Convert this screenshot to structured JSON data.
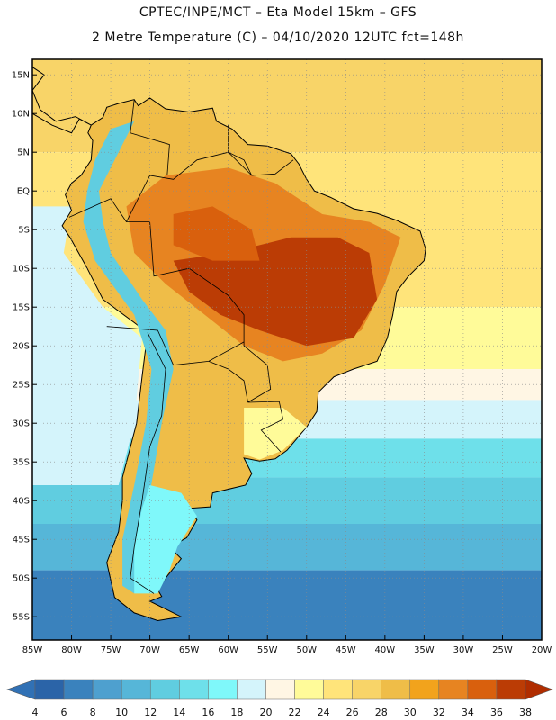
{
  "header": {
    "line1": "CPTEC/INPE/MCT –  Eta Model 15km – GFS",
    "line2": "2 Metre Temperature (C) – 04/10/2020 12UTC fct=148h"
  },
  "map": {
    "lon_range": [
      -85,
      -20
    ],
    "lat_range": [
      -58,
      17
    ],
    "lat_ticks": [
      {
        "v": 15,
        "label": "15N"
      },
      {
        "v": 10,
        "label": "10N"
      },
      {
        "v": 5,
        "label": "5N"
      },
      {
        "v": 0,
        "label": "EQ"
      },
      {
        "v": -5,
        "label": "5S"
      },
      {
        "v": -10,
        "label": "10S"
      },
      {
        "v": -15,
        "label": "15S"
      },
      {
        "v": -20,
        "label": "20S"
      },
      {
        "v": -25,
        "label": "25S"
      },
      {
        "v": -30,
        "label": "30S"
      },
      {
        "v": -35,
        "label": "35S"
      },
      {
        "v": -40,
        "label": "40S"
      },
      {
        "v": -45,
        "label": "45S"
      },
      {
        "v": -50,
        "label": "50S"
      },
      {
        "v": -55,
        "label": "55S"
      }
    ],
    "lon_ticks": [
      {
        "v": -85,
        "label": "85W"
      },
      {
        "v": -80,
        "label": "80W"
      },
      {
        "v": -75,
        "label": "75W"
      },
      {
        "v": -70,
        "label": "70W"
      },
      {
        "v": -65,
        "label": "65W"
      },
      {
        "v": -60,
        "label": "60W"
      },
      {
        "v": -55,
        "label": "55W"
      },
      {
        "v": -50,
        "label": "50W"
      },
      {
        "v": -45,
        "label": "45W"
      },
      {
        "v": -40,
        "label": "40W"
      },
      {
        "v": -35,
        "label": "35W"
      },
      {
        "v": -30,
        "label": "30W"
      },
      {
        "v": -25,
        "label": "25W"
      },
      {
        "v": -20,
        "label": "20W"
      }
    ],
    "temperature_bands_ocean": [
      {
        "lat_from": 17,
        "lat_to": 5,
        "temp": 26
      },
      {
        "lat_from": 5,
        "lat_to": -15,
        "temp": 24
      },
      {
        "lat_from": -15,
        "lat_to": -23,
        "temp": 22
      },
      {
        "lat_from": -23,
        "lat_to": -27,
        "temp": 20
      },
      {
        "lat_from": -27,
        "lat_to": -32,
        "temp": 18
      },
      {
        "lat_from": -32,
        "lat_to": -37,
        "temp": 14
      },
      {
        "lat_from": -37,
        "lat_to": -43,
        "temp": 12
      },
      {
        "lat_from": -43,
        "lat_to": -49,
        "temp": 10
      },
      {
        "lat_from": -49,
        "lat_to": -58,
        "temp": 6
      }
    ],
    "continent_regions": [
      {
        "name": "south-america-land",
        "temp": 28
      },
      {
        "name": "amazon-interior",
        "temp": 32
      },
      {
        "name": "central-brazil-hot",
        "temp": 36
      },
      {
        "name": "andes-cold",
        "temp": 12
      },
      {
        "name": "patagonia-cool",
        "temp": 16
      },
      {
        "name": "uruguay-mild",
        "temp": 22
      }
    ]
  },
  "colorbar": {
    "levels": [
      "4",
      "6",
      "8",
      "10",
      "12",
      "14",
      "16",
      "18",
      "20",
      "22",
      "24",
      "26",
      "28",
      "30",
      "32",
      "34",
      "36",
      "38"
    ],
    "colors": [
      "#2b64a8",
      "#3a82bd",
      "#4ea0cf",
      "#56b6d8",
      "#60cde0",
      "#6ee0ea",
      "#7ff8fa",
      "#d4f4fb",
      "#fff6e4",
      "#fffb99",
      "#ffe47a",
      "#f8d468",
      "#efbd48",
      "#f2a31c",
      "#e78421",
      "#d9600d",
      "#bb3c05"
    ],
    "low_end_color": "#3171b5",
    "high_end_color": "#b02d00"
  }
}
